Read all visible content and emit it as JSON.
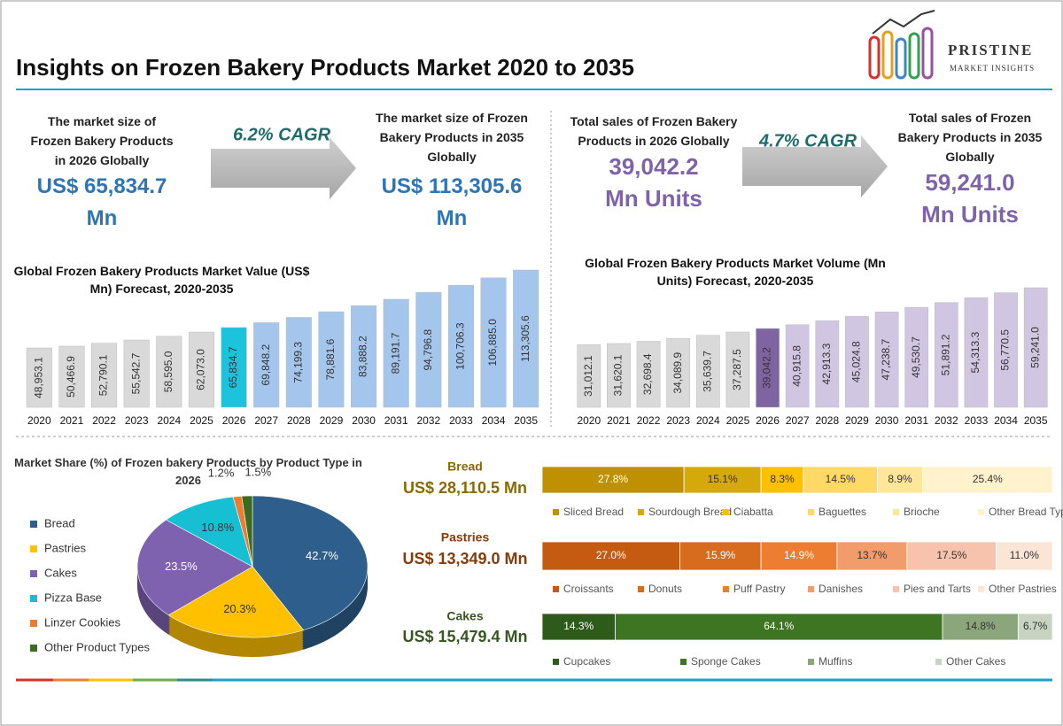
{
  "header": {
    "title": "Insights on Frozen Bakery Products Market 2020 to 2035",
    "logo_name": "PRISTINE",
    "logo_tagline": "MARKET INSIGHTS"
  },
  "kpis": {
    "value": {
      "start_text": [
        "The market size of",
        "Frozen Bakery Products",
        "in 2026 Globally"
      ],
      "start_value": [
        "US$ 65,834.7",
        "Mn"
      ],
      "cagr": "6.2% CAGR",
      "end_text": [
        "The market size of Frozen",
        "Bakery Products in 2035",
        "Globally"
      ],
      "end_value": [
        "US$ 113,305.6",
        "Mn"
      ]
    },
    "volume": {
      "start_text": [
        "Total sales of Frozen Bakery",
        "Products in 2026 Globally"
      ],
      "start_value": [
        "39,042.2",
        "Mn Units"
      ],
      "cagr": "4.7% CAGR",
      "end_text": [
        "Total sales of Frozen",
        "Bakery Products in 2035",
        "Globally"
      ],
      "end_value": [
        "59,241.0",
        "Mn Units"
      ]
    }
  },
  "chart_data": [
    {
      "type": "bar",
      "title": "Global Frozen Bakery Products Market Value (US$ Mn) Forecast, 2020-2035",
      "categories": [
        "2020",
        "2021",
        "2022",
        "2023",
        "2024",
        "2025",
        "2026",
        "2027",
        "2028",
        "2029",
        "2030",
        "2031",
        "2032",
        "2033",
        "2034",
        "2035"
      ],
      "values": [
        48953.1,
        50466.9,
        52790.1,
        55542.7,
        58595.0,
        62073.0,
        65834.7,
        69848.2,
        74199.3,
        78881.6,
        83888.2,
        89191.7,
        94796.8,
        100706.3,
        106885.0,
        113305.6
      ],
      "value_labels": [
        "48,953.1",
        "50,466.9",
        "52,790.1",
        "55,542.7",
        "58,595.0",
        "62,073.0",
        "65,834.7",
        "69,848.2",
        "74,199.3",
        "78,881.6",
        "83,888.2",
        "89,191.7",
        "94,796.8",
        "100,706.3",
        "106,885.0",
        "113,305.6"
      ],
      "colors": [
        "#d9d9d9",
        "#d9d9d9",
        "#d9d9d9",
        "#d9d9d9",
        "#d9d9d9",
        "#d9d9d9",
        "#1cc3dc",
        "#a4c6ec",
        "#a4c6ec",
        "#a4c6ec",
        "#a4c6ec",
        "#a4c6ec",
        "#a4c6ec",
        "#a4c6ec",
        "#a4c6ec",
        "#a4c6ec"
      ]
    },
    {
      "type": "bar",
      "title": "Global Frozen Bakery Products Market Volume (Mn Units) Forecast, 2020-2035",
      "categories": [
        "2020",
        "2021",
        "2022",
        "2023",
        "2024",
        "2025",
        "2026",
        "2027",
        "2028",
        "2029",
        "2030",
        "2031",
        "2032",
        "2033",
        "2034",
        "2035"
      ],
      "values": [
        31012.1,
        31620.1,
        32698.4,
        34089.9,
        35639.7,
        37287.5,
        39042.2,
        40915.8,
        42913.3,
        45024.8,
        47238.7,
        49530.7,
        51891.2,
        54313.3,
        56770.5,
        59241.0
      ],
      "value_labels": [
        "31,012.1",
        "31,620.1",
        "32,698.4",
        "34,089.9",
        "35,639.7",
        "37,287.5",
        "39,042.2",
        "40,915.8",
        "42,913.3",
        "45,024.8",
        "47,238.7",
        "49,530.7",
        "51,891.2",
        "54,313.3",
        "56,770.5",
        "59,241.0"
      ],
      "colors": [
        "#d9d9d9",
        "#d9d9d9",
        "#d9d9d9",
        "#d9d9d9",
        "#d9d9d9",
        "#d9d9d9",
        "#8064a2",
        "#d0c6e1",
        "#d0c6e1",
        "#d0c6e1",
        "#d0c6e1",
        "#d0c6e1",
        "#d0c6e1",
        "#d0c6e1",
        "#d0c6e1",
        "#d0c6e1"
      ]
    },
    {
      "type": "pie",
      "title": "Market Share (%) of Frozen bakery Products by Product Type in 2026",
      "categories": [
        "Bread",
        "Pastries",
        "Cakes",
        "Pizza Base",
        "Linzer Cookies",
        "Other Product Types"
      ],
      "values": [
        42.7,
        20.3,
        23.5,
        10.8,
        1.2,
        1.5
      ],
      "value_labels": [
        "42.7%",
        "20.3%",
        "23.5%",
        "10.8%",
        "1.2%",
        "1.5%"
      ],
      "colors": [
        "#2e5f8c",
        "#ffc000",
        "#7e62b0",
        "#17bfd3",
        "#ed7d31",
        "#3e6b22"
      ]
    },
    {
      "type": "stacked_bar",
      "title": "Bread",
      "subtitle": "US$ 28,110.5 Mn",
      "title_color": "#8a6a00",
      "series": [
        {
          "name": "Sliced Bread",
          "color": "#bf9000",
          "values": [
            27.8
          ],
          "value_labels": [
            "27.8%"
          ]
        },
        {
          "name": "Sourdough Bread",
          "color": "#d6a90a",
          "values": [
            15.1
          ],
          "value_labels": [
            "15.1%"
          ]
        },
        {
          "name": "Ciabatta",
          "color": "#ffc000",
          "values": [
            8.3
          ],
          "value_labels": [
            "8.3%"
          ]
        },
        {
          "name": "Baguettes",
          "color": "#ffd966",
          "values": [
            14.5
          ],
          "value_labels": [
            "14.5%"
          ]
        },
        {
          "name": "Brioche",
          "color": "#ffe699",
          "values": [
            8.9
          ],
          "value_labels": [
            "8.9%"
          ]
        },
        {
          "name": "Other Bread Types",
          "color": "#fff2cc",
          "values": [
            25.4
          ],
          "value_labels": [
            "25.4%"
          ]
        }
      ]
    },
    {
      "type": "stacked_bar",
      "title": "Pastries",
      "subtitle": "US$ 13,349.0 Mn",
      "title_color": "#843c0c",
      "series": [
        {
          "name": "Croissants",
          "color": "#c55a11",
          "values": [
            27.0
          ],
          "value_labels": [
            "27.0%"
          ]
        },
        {
          "name": "Donuts",
          "color": "#d86c1e",
          "values": [
            15.9
          ],
          "value_labels": [
            "15.9%"
          ]
        },
        {
          "name": "Puff Pastry",
          "color": "#ed7d31",
          "values": [
            14.9
          ],
          "value_labels": [
            "14.9%"
          ]
        },
        {
          "name": "Danishes",
          "color": "#f29b6b",
          "values": [
            13.7
          ],
          "value_labels": [
            "13.7%"
          ]
        },
        {
          "name": "Pies and Tarts",
          "color": "#f8c3ad",
          "values": [
            17.5
          ],
          "value_labels": [
            "17.5%"
          ]
        },
        {
          "name": "Other Pastries",
          "color": "#fbe5d6",
          "values": [
            11.0
          ],
          "value_labels": [
            "11.0%"
          ]
        }
      ]
    },
    {
      "type": "stacked_bar",
      "title": "Cakes",
      "subtitle": "US$ 15,479.4 Mn",
      "title_color": "#375623",
      "series": [
        {
          "name": "Cupcakes",
          "color": "#2e5a1a",
          "values": [
            14.3
          ],
          "value_labels": [
            "14.3%"
          ]
        },
        {
          "name": "Sponge Cakes",
          "color": "#3d7522",
          "values": [
            64.1
          ],
          "value_labels": [
            "64.1%"
          ]
        },
        {
          "name": "Muffins",
          "color": "#8ba67b",
          "values": [
            14.8
          ],
          "value_labels": [
            "14.8%"
          ]
        },
        {
          "name": "Other Cakes",
          "color": "#c9d3c2",
          "values": [
            6.7
          ],
          "value_labels": [
            "6.7%"
          ]
        }
      ]
    }
  ]
}
